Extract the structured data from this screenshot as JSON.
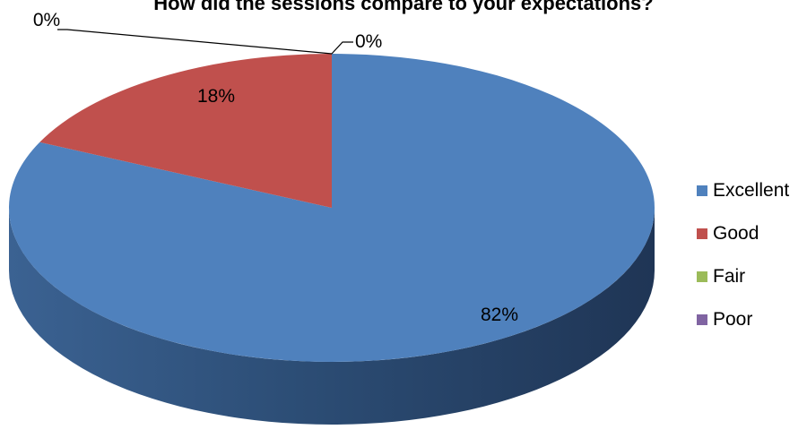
{
  "chart_data": {
    "type": "pie",
    "title": "How did the sessions compare to your expectations?",
    "categories": [
      "Excellent",
      "Good",
      "Fair",
      "Poor"
    ],
    "values": [
      82,
      18,
      0,
      0
    ],
    "data_labels": [
      "82%",
      "18%",
      "0%",
      "0%"
    ],
    "colors": [
      "#4F81BD",
      "#C0504D",
      "#9BBB59",
      "#8064A2"
    ],
    "side_colors": [
      "#2c4d75",
      "#7d2f2d",
      "#5f7530",
      "#4d3b62"
    ],
    "legend_position": "right",
    "style": "3d"
  }
}
